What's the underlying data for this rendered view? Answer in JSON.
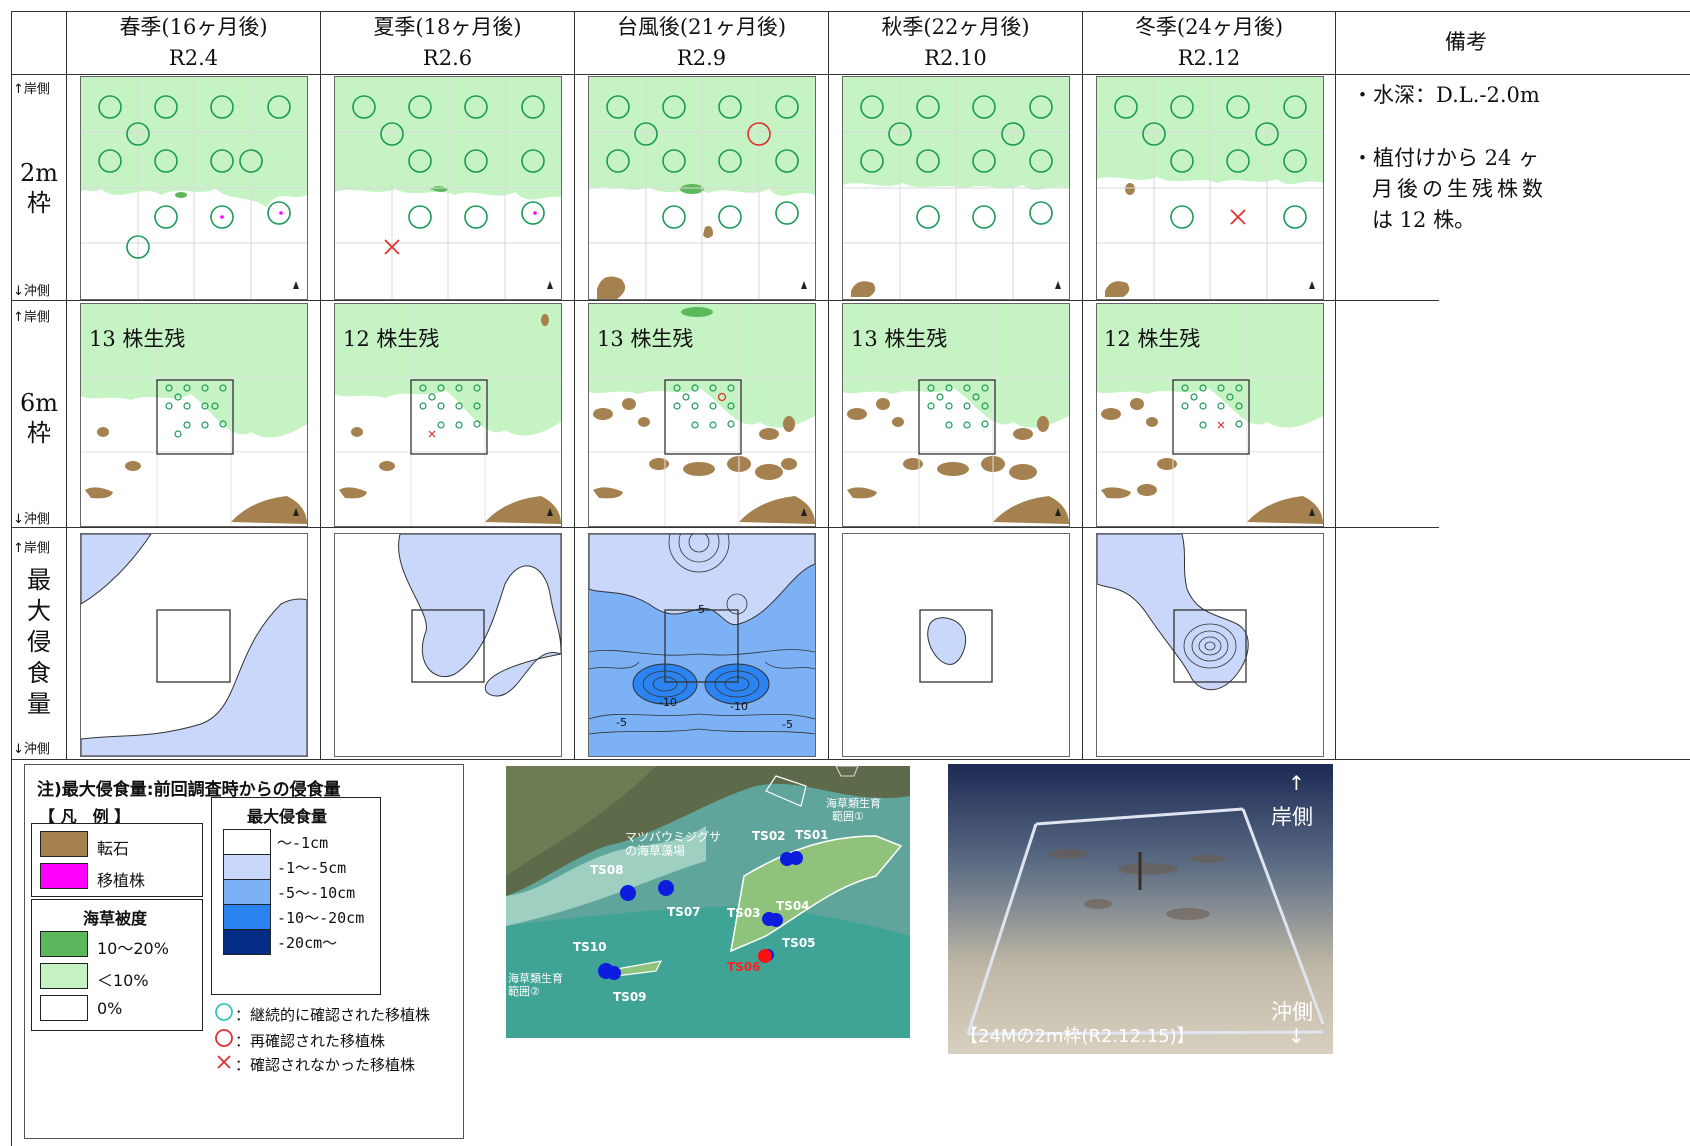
{
  "columns": [
    {
      "season": "春季(16ヶ月後)",
      "date": "R2.4"
    },
    {
      "season": "夏季(18ヶ月後)",
      "date": "R2.6"
    },
    {
      "season": "台風後(21ヶ月後)",
      "date": "R2.9"
    },
    {
      "season": "秋季(22ヶ月後)",
      "date": "R2.10"
    },
    {
      "season": "冬季(24ヶ月後)",
      "date": "R2.12"
    }
  ],
  "remarks_header": "備考",
  "remarks": [
    "・水深：D.L.-2.0m",
    "・植付けから 24 ヶ",
    "月後の生残株数",
    "は 12 株。"
  ],
  "rows": {
    "shore": "↑岸側",
    "offshore": "↓沖側",
    "frame2m": [
      "2m",
      "枠"
    ],
    "frame6m": [
      "6m",
      "枠"
    ],
    "erosion": [
      "最",
      "大",
      "侵",
      "食",
      "量"
    ]
  },
  "survival_6m": [
    "13 株生残",
    "12 株生残",
    "13 株生残",
    "13 株生残",
    "12 株生残"
  ],
  "contours": {
    "minus5": "-5",
    "minus10": "-10"
  },
  "legend": {
    "note": "注)最大侵食量:前回調査時からの侵食量",
    "title": "【 凡　例 】",
    "cobble": "転石",
    "transplant": "移植株",
    "coverage_title": "海草被度",
    "cov_high": "10～20%",
    "cov_low": "＜10%",
    "cov_zero": "0%",
    "erosion_title": "最大侵食量",
    "erosion_bins": [
      "～-1cm",
      "-1～-5cm",
      "-5～-10cm",
      "-10～-20cm",
      "-20cm～"
    ],
    "erosion_colors": [
      "#ffffff",
      "#c9d7fb",
      "#7cb1f6",
      "#2a83f0",
      "#052c84"
    ],
    "marker_green": "：継続的に確認された移植株",
    "marker_red": "：再確認された移植株",
    "marker_x": "：確認されなかった移植株"
  },
  "map": {
    "area1": "海草類生育\n範囲①",
    "area1_line1": "海草類生育",
    "area1_line2": "範囲①",
    "area2_line1": "海草類生育",
    "area2_line2": "範囲②",
    "meadow_line1": "マツバウミジグサ",
    "meadow_line2": "の海草藻場",
    "stations": [
      "TS01",
      "TS02",
      "TS03",
      "TS04",
      "TS05",
      "TS06",
      "TS07",
      "TS08",
      "TS09",
      "TS10"
    ]
  },
  "photo": {
    "shore_arrow": "↑",
    "shore": "岸側",
    "offshore": "沖側",
    "offshore_arrow": "↓",
    "caption": "【24Mの2m枠(R2.12.15)】"
  },
  "colors": {
    "seagrass_low": "#c6f3c4",
    "seagrass_high": "#5cb85c",
    "cobble": "#a4814f",
    "transplant": "#ff00ff",
    "marker_green": "#1a9a55",
    "marker_red": "#e03030"
  }
}
